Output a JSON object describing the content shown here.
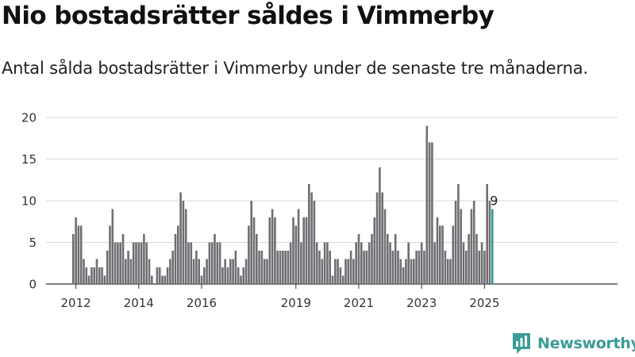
{
  "title": "Nio bostadsrätter såldes i Vimmerby",
  "subtitle": "Antal sålda bostadsrätter i Vimmerby under de senaste tre månaderna.",
  "brand": {
    "name": "Newsworthy",
    "icon": "newsworthy-logo-icon",
    "color": "#3a9c96"
  },
  "colors": {
    "bar": "#6f6e73",
    "highlight": "#2a9d94",
    "grid": "#d9d9d9",
    "axis": "#333333"
  },
  "chart_data": {
    "type": "bar",
    "x_start": "2011-12",
    "x_ticks": [
      "2012",
      "2014",
      "2016",
      "2019",
      "2021",
      "2023",
      "2025"
    ],
    "y_ticks": [
      0,
      5,
      10,
      15,
      20
    ],
    "ylim": [
      0,
      21
    ],
    "grid": true,
    "highlight_last": true,
    "last_value_label": "9",
    "values": [
      6,
      8,
      7,
      7,
      3,
      2,
      1,
      2,
      2,
      3,
      2,
      2,
      1,
      4,
      7,
      9,
      5,
      5,
      5,
      6,
      3,
      4,
      3,
      5,
      5,
      5,
      5,
      6,
      5,
      3,
      1,
      0,
      2,
      2,
      1,
      1,
      2,
      3,
      4,
      6,
      7,
      11,
      10,
      9,
      5,
      5,
      3,
      4,
      3,
      1,
      2,
      3,
      5,
      5,
      6,
      5,
      5,
      2,
      3,
      2,
      3,
      3,
      4,
      2,
      1,
      2,
      3,
      7,
      10,
      8,
      6,
      4,
      4,
      3,
      3,
      8,
      9,
      8,
      4,
      4,
      4,
      4,
      4,
      5,
      8,
      7,
      9,
      5,
      8,
      8,
      12,
      11,
      10,
      5,
      4,
      3,
      5,
      5,
      4,
      1,
      3,
      3,
      2,
      1,
      3,
      3,
      4,
      3,
      5,
      6,
      5,
      4,
      4,
      5,
      6,
      8,
      11,
      14,
      11,
      9,
      6,
      5,
      4,
      6,
      4,
      3,
      2,
      3,
      5,
      3,
      3,
      4,
      4,
      5,
      4,
      19,
      17,
      17,
      5,
      8,
      7,
      7,
      4,
      3,
      3,
      7,
      10,
      12,
      9,
      5,
      4,
      6,
      9,
      10,
      6,
      4,
      5,
      4,
      12,
      10,
      9
    ]
  }
}
